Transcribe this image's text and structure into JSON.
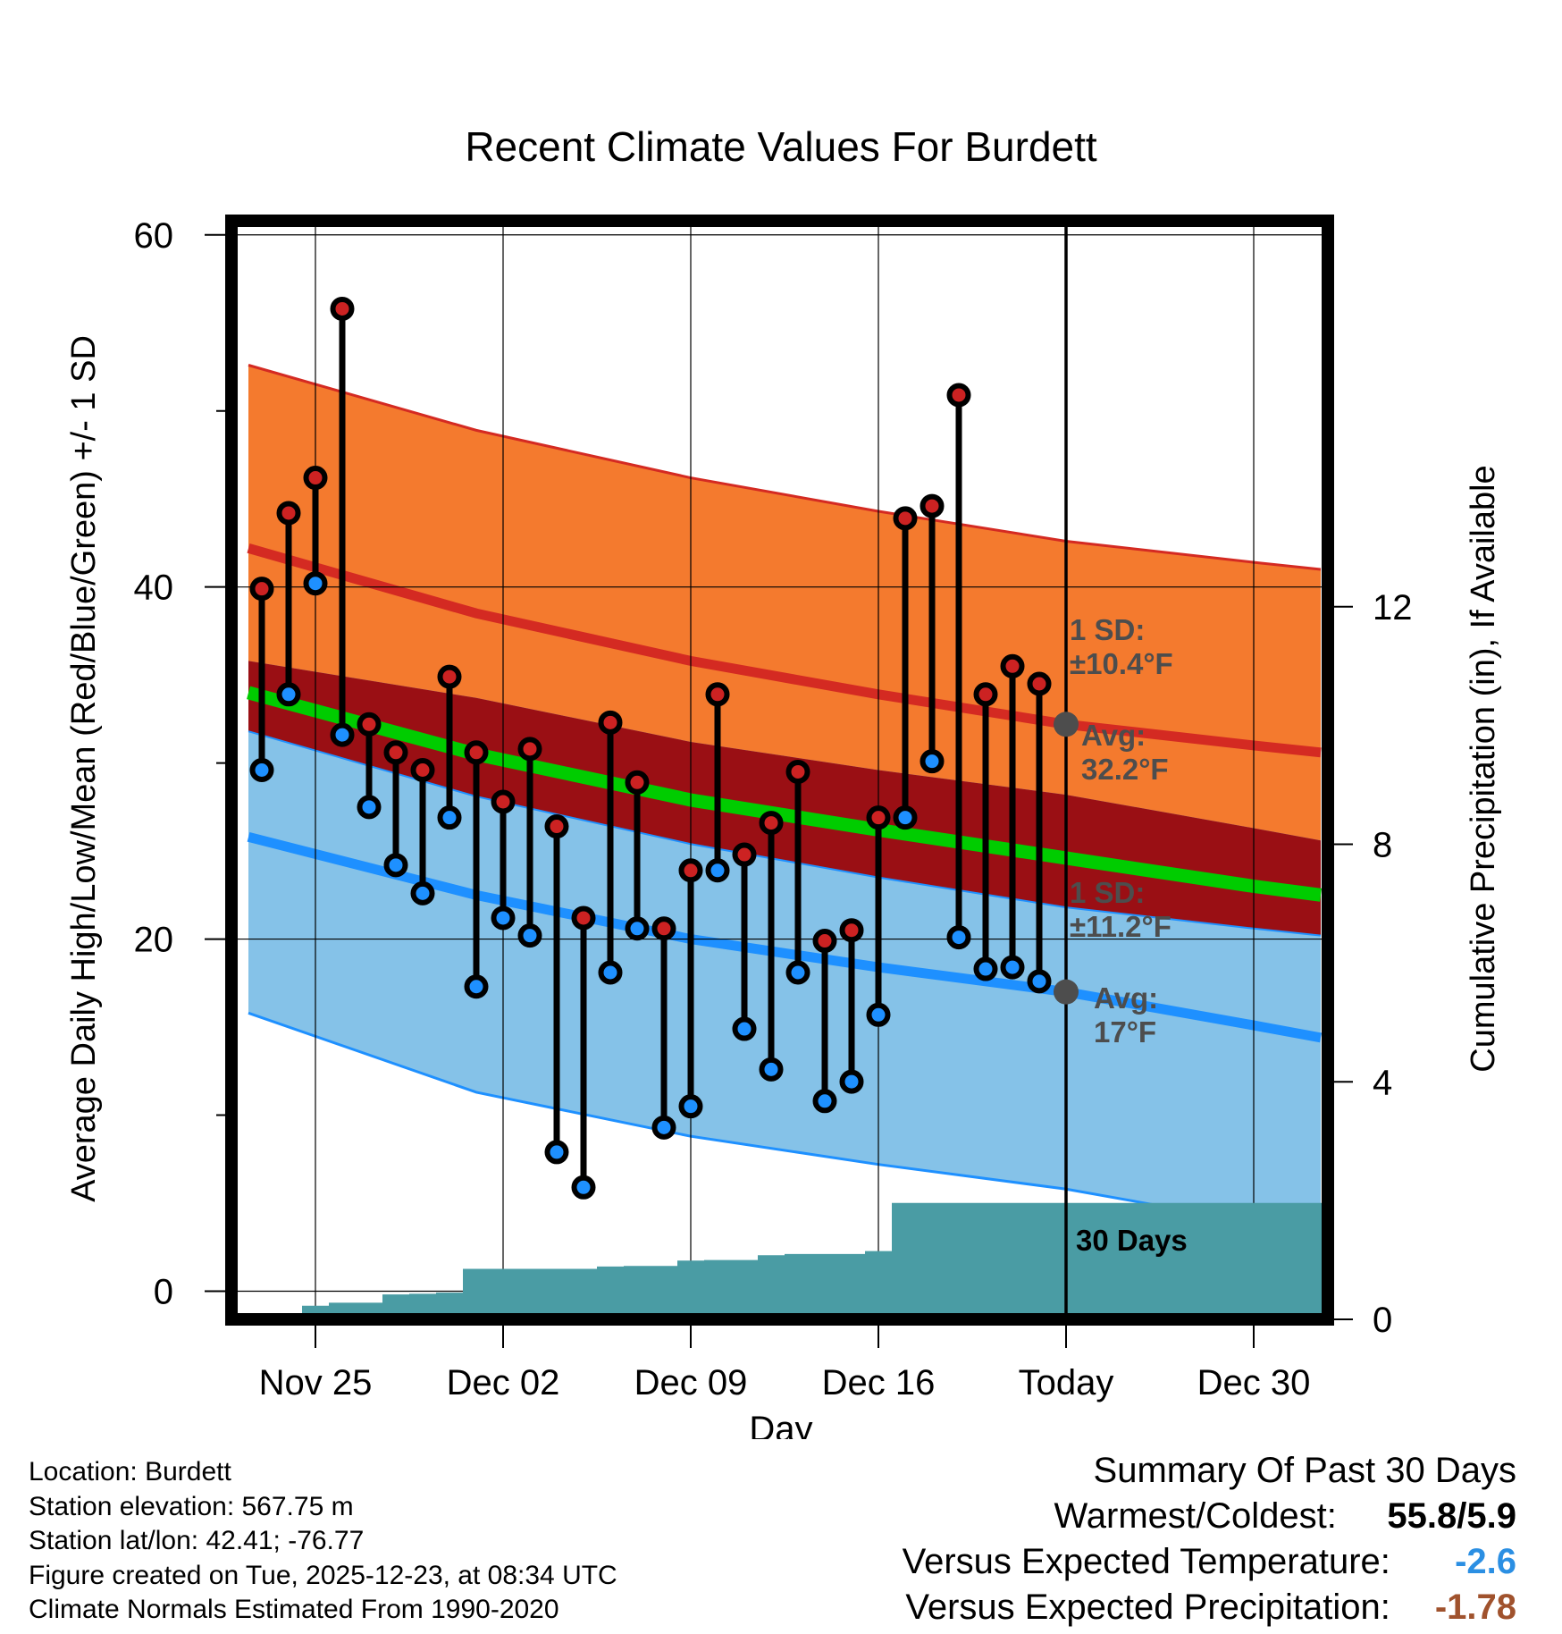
{
  "chart_data": {
    "type": "line",
    "title": "Recent Climate Values For Burdett",
    "xlabel": "Day",
    "ylabel_left": "Average Daily High/Low/Mean (Red/Blue/Green) +/- 1 SD",
    "ylabel_right": "Cumulative Precipitation (in), If Available",
    "ylim_left": [
      -1.6,
      60.8
    ],
    "ylim_right": [
      0,
      18.5
    ],
    "xlim_days": [
      -26.2,
      14
    ],
    "yticks_left": [
      0,
      20,
      40,
      60
    ],
    "yticks_right": [
      0,
      4,
      8,
      12
    ],
    "xticks": [
      {
        "day": -28,
        "label": "Nov 25"
      },
      {
        "day": -21,
        "label": "Dec 02"
      },
      {
        "day": -14,
        "label": "Dec 09"
      },
      {
        "day": -7,
        "label": "Dec 16"
      },
      {
        "day": 0,
        "label": "Today"
      },
      {
        "day": 7,
        "label": "Dec 30"
      }
    ],
    "normals": {
      "days": [
        -30.5,
        -22,
        -14,
        -7,
        0,
        7,
        9.5
      ],
      "high_avg": [
        42.2,
        38.5,
        35.8,
        33.9,
        32.2,
        31.0,
        30.6
      ],
      "high_plus_sd": [
        52.6,
        48.9,
        46.2,
        44.3,
        42.6,
        41.4,
        41.0
      ],
      "low_avg": [
        25.8,
        22.5,
        20.0,
        18.4,
        17.0,
        15.1,
        14.4
      ],
      "low_minus_sd": [
        15.8,
        11.3,
        8.8,
        7.2,
        5.8,
        3.9,
        3.2
      ],
      "mean_avg": [
        34.0,
        30.5,
        27.9,
        26.2,
        24.6,
        23.0,
        22.5
      ]
    },
    "series": [
      {
        "name": "Daily High",
        "color": "#cc2222",
        "values": [
          39.9,
          44.2,
          46.2,
          55.8,
          32.2,
          30.6,
          29.6,
          34.9,
          30.6,
          27.8,
          30.8,
          26.4,
          21.2,
          32.3,
          28.9,
          20.6,
          23.9,
          33.9,
          24.8,
          26.6,
          29.5,
          19.9,
          20.5,
          26.9,
          43.9,
          44.6,
          50.9,
          33.9,
          35.5,
          34.5
        ]
      },
      {
        "name": "Daily Low",
        "color": "#1e90ff",
        "values": [
          29.6,
          33.9,
          40.2,
          31.6,
          27.5,
          24.2,
          22.6,
          26.9,
          17.3,
          21.2,
          20.2,
          7.9,
          5.9,
          18.1,
          20.6,
          9.3,
          10.5,
          23.9,
          14.9,
          12.6,
          18.1,
          10.8,
          11.9,
          15.7,
          26.9,
          30.1,
          20.1,
          18.3,
          18.4,
          17.6
        ]
      }
    ],
    "precip": {
      "days": [
        -30,
        -29,
        -28,
        -27,
        -26,
        -25,
        -24,
        -23,
        -22,
        -21,
        -20,
        -19,
        -18,
        -17,
        -16,
        -15,
        -14,
        -13,
        -12,
        -11,
        -10,
        -9,
        -8,
        -7,
        -6,
        -5,
        -4,
        -3,
        -2,
        -1,
        0
      ],
      "cumulative_in": [
        0.0,
        0.0,
        0.23,
        0.28,
        0.28,
        0.42,
        0.43,
        0.45,
        0.85,
        0.85,
        0.85,
        0.85,
        0.85,
        0.89,
        0.9,
        0.9,
        0.99,
        1.0,
        1.0,
        1.08,
        1.1,
        1.1,
        1.1,
        1.15,
        1.96,
        1.96,
        1.96,
        1.96,
        1.96,
        1.96,
        1.96
      ],
      "label": "30 Days"
    },
    "annotations": {
      "high_sd": "1 SD:\n±10.4°F",
      "high_avg": "Avg:\n32.2°F",
      "high_avg_value": 32.2,
      "low_sd": "1 SD:\n±11.2°F",
      "low_avg": "Avg:\n17°F",
      "low_avg_value": 17
    },
    "colors": {
      "high_band": "#f47a2e",
      "high_line": "#d42a22",
      "overlap_band": "#9a0f14",
      "mean_line": "#00cc00",
      "low_band": "#85c2e8",
      "low_line": "#1e90ff",
      "precip": "#4a9ca4",
      "annotation": "#4d4d4d"
    }
  },
  "footer": {
    "location": "Location: Burdett",
    "elevation": "Station elevation: 567.75 m",
    "latlon": "Station lat/lon: 42.41; -76.77",
    "created": "Figure created on Tue, 2025-12-23, at 08:34 UTC",
    "normals": "Climate Normals Estimated From 1990-2020"
  },
  "summary": {
    "title": "Summary Of Past 30 Days",
    "warm_cold_label": "Warmest/Coldest:",
    "warm_cold_value": "55.8/5.9",
    "temp_label": "Versus Expected Temperature:",
    "temp_value": "-2.6",
    "temp_color": "#2b8fe3",
    "precip_label": "Versus Expected Precipitation:",
    "precip_value": "-1.78",
    "precip_color": "#a0522d"
  }
}
